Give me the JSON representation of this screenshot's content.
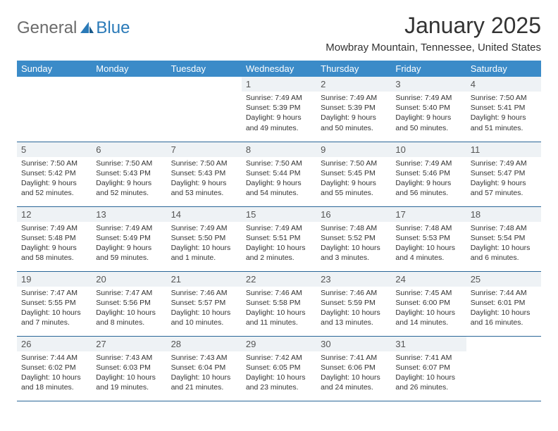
{
  "logo": {
    "text1": "General",
    "text2": "Blue"
  },
  "title": "January 2025",
  "location": "Mowbray Mountain, Tennessee, United States",
  "colors": {
    "header_bg": "#3b8bc8",
    "header_text": "#ffffff",
    "daynum_bg": "#eef2f5",
    "border": "#2a6698",
    "logo_gray": "#6b6b6b",
    "logo_blue": "#2a7ab8"
  },
  "dayNames": [
    "Sunday",
    "Monday",
    "Tuesday",
    "Wednesday",
    "Thursday",
    "Friday",
    "Saturday"
  ],
  "weeks": [
    [
      null,
      null,
      null,
      {
        "n": "1",
        "sr": "7:49 AM",
        "ss": "5:39 PM",
        "d1": "Daylight: 9 hours",
        "d2": "and 49 minutes."
      },
      {
        "n": "2",
        "sr": "7:49 AM",
        "ss": "5:39 PM",
        "d1": "Daylight: 9 hours",
        "d2": "and 50 minutes."
      },
      {
        "n": "3",
        "sr": "7:49 AM",
        "ss": "5:40 PM",
        "d1": "Daylight: 9 hours",
        "d2": "and 50 minutes."
      },
      {
        "n": "4",
        "sr": "7:50 AM",
        "ss": "5:41 PM",
        "d1": "Daylight: 9 hours",
        "d2": "and 51 minutes."
      }
    ],
    [
      {
        "n": "5",
        "sr": "7:50 AM",
        "ss": "5:42 PM",
        "d1": "Daylight: 9 hours",
        "d2": "and 52 minutes."
      },
      {
        "n": "6",
        "sr": "7:50 AM",
        "ss": "5:43 PM",
        "d1": "Daylight: 9 hours",
        "d2": "and 52 minutes."
      },
      {
        "n": "7",
        "sr": "7:50 AM",
        "ss": "5:43 PM",
        "d1": "Daylight: 9 hours",
        "d2": "and 53 minutes."
      },
      {
        "n": "8",
        "sr": "7:50 AM",
        "ss": "5:44 PM",
        "d1": "Daylight: 9 hours",
        "d2": "and 54 minutes."
      },
      {
        "n": "9",
        "sr": "7:50 AM",
        "ss": "5:45 PM",
        "d1": "Daylight: 9 hours",
        "d2": "and 55 minutes."
      },
      {
        "n": "10",
        "sr": "7:49 AM",
        "ss": "5:46 PM",
        "d1": "Daylight: 9 hours",
        "d2": "and 56 minutes."
      },
      {
        "n": "11",
        "sr": "7:49 AM",
        "ss": "5:47 PM",
        "d1": "Daylight: 9 hours",
        "d2": "and 57 minutes."
      }
    ],
    [
      {
        "n": "12",
        "sr": "7:49 AM",
        "ss": "5:48 PM",
        "d1": "Daylight: 9 hours",
        "d2": "and 58 minutes."
      },
      {
        "n": "13",
        "sr": "7:49 AM",
        "ss": "5:49 PM",
        "d1": "Daylight: 9 hours",
        "d2": "and 59 minutes."
      },
      {
        "n": "14",
        "sr": "7:49 AM",
        "ss": "5:50 PM",
        "d1": "Daylight: 10 hours",
        "d2": "and 1 minute."
      },
      {
        "n": "15",
        "sr": "7:49 AM",
        "ss": "5:51 PM",
        "d1": "Daylight: 10 hours",
        "d2": "and 2 minutes."
      },
      {
        "n": "16",
        "sr": "7:48 AM",
        "ss": "5:52 PM",
        "d1": "Daylight: 10 hours",
        "d2": "and 3 minutes."
      },
      {
        "n": "17",
        "sr": "7:48 AM",
        "ss": "5:53 PM",
        "d1": "Daylight: 10 hours",
        "d2": "and 4 minutes."
      },
      {
        "n": "18",
        "sr": "7:48 AM",
        "ss": "5:54 PM",
        "d1": "Daylight: 10 hours",
        "d2": "and 6 minutes."
      }
    ],
    [
      {
        "n": "19",
        "sr": "7:47 AM",
        "ss": "5:55 PM",
        "d1": "Daylight: 10 hours",
        "d2": "and 7 minutes."
      },
      {
        "n": "20",
        "sr": "7:47 AM",
        "ss": "5:56 PM",
        "d1": "Daylight: 10 hours",
        "d2": "and 8 minutes."
      },
      {
        "n": "21",
        "sr": "7:46 AM",
        "ss": "5:57 PM",
        "d1": "Daylight: 10 hours",
        "d2": "and 10 minutes."
      },
      {
        "n": "22",
        "sr": "7:46 AM",
        "ss": "5:58 PM",
        "d1": "Daylight: 10 hours",
        "d2": "and 11 minutes."
      },
      {
        "n": "23",
        "sr": "7:46 AM",
        "ss": "5:59 PM",
        "d1": "Daylight: 10 hours",
        "d2": "and 13 minutes."
      },
      {
        "n": "24",
        "sr": "7:45 AM",
        "ss": "6:00 PM",
        "d1": "Daylight: 10 hours",
        "d2": "and 14 minutes."
      },
      {
        "n": "25",
        "sr": "7:44 AM",
        "ss": "6:01 PM",
        "d1": "Daylight: 10 hours",
        "d2": "and 16 minutes."
      }
    ],
    [
      {
        "n": "26",
        "sr": "7:44 AM",
        "ss": "6:02 PM",
        "d1": "Daylight: 10 hours",
        "d2": "and 18 minutes."
      },
      {
        "n": "27",
        "sr": "7:43 AM",
        "ss": "6:03 PM",
        "d1": "Daylight: 10 hours",
        "d2": "and 19 minutes."
      },
      {
        "n": "28",
        "sr": "7:43 AM",
        "ss": "6:04 PM",
        "d1": "Daylight: 10 hours",
        "d2": "and 21 minutes."
      },
      {
        "n": "29",
        "sr": "7:42 AM",
        "ss": "6:05 PM",
        "d1": "Daylight: 10 hours",
        "d2": "and 23 minutes."
      },
      {
        "n": "30",
        "sr": "7:41 AM",
        "ss": "6:06 PM",
        "d1": "Daylight: 10 hours",
        "d2": "and 24 minutes."
      },
      {
        "n": "31",
        "sr": "7:41 AM",
        "ss": "6:07 PM",
        "d1": "Daylight: 10 hours",
        "d2": "and 26 minutes."
      },
      null
    ]
  ],
  "labels": {
    "sunrise": "Sunrise: ",
    "sunset": "Sunset: "
  }
}
